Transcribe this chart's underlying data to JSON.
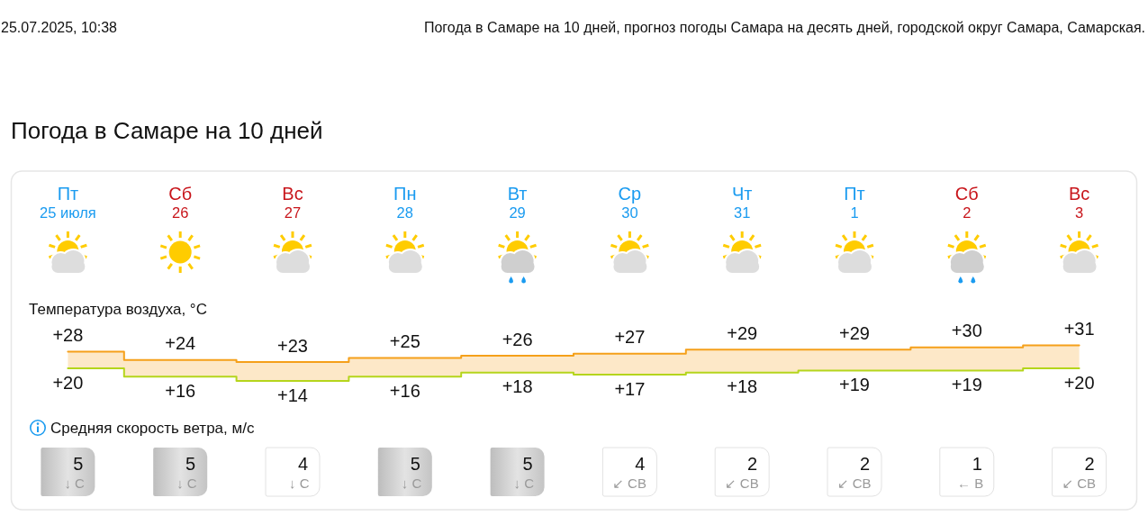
{
  "chart_data": [
    {
      "type": "step",
      "title": "Погода в Самаре на 10 дней",
      "subtitle": "Температура воздуха, °C",
      "annotations": [
        "25.07.2025, 10:38",
        "Погода в Самаре на 10 дней, прогноз погоды Самара на десять дней, городской округ Самара, Самарская."
      ],
      "categories": [
        "Пт\n25 июля",
        "Сб\n26",
        "Вс\n27",
        "Пн\n28",
        "Вт\n29",
        "Ср\n30",
        "Чт\n31",
        "Пт\n1",
        "Сб\n2",
        "Вс\n3"
      ],
      "series": [
        {
          "color": "#f5a01a",
          "values": [
            28,
            24,
            23,
            25,
            26,
            27,
            29,
            29,
            30,
            31
          ],
          "value_labels": [
            "+28",
            "+24",
            "+23",
            "+25",
            "+26",
            "+27",
            "+29",
            "+29",
            "+30",
            "+31"
          ],
          "lower": [
            20,
            16,
            14,
            16,
            18,
            17,
            18,
            19,
            19,
            20
          ],
          "upper": [
            28,
            24,
            23,
            25,
            26,
            27,
            29,
            29,
            30,
            31
          ]
        },
        {
          "color": "#b5d51c",
          "values": [
            20,
            16,
            14,
            16,
            18,
            17,
            18,
            19,
            19,
            20
          ],
          "value_labels": [
            "+20",
            "+16",
            "+14",
            "+16",
            "+18",
            "+17",
            "+18",
            "+19",
            "+19",
            "+20"
          ]
        }
      ]
    },
    {
      "type": "other",
      "title": "Средняя скорость ветра, м/с",
      "data_labels": true,
      "values": [
        5,
        5,
        4,
        5,
        5,
        4,
        2,
        2,
        1,
        2
      ],
      "annotations": [
        "↓ С",
        "↓ С",
        "↓ С",
        "↓ С",
        "↓ С",
        "↙ СВ",
        "↙ СВ",
        "↙ СВ",
        "← В",
        "↙ СВ"
      ]
    }
  ]
}
